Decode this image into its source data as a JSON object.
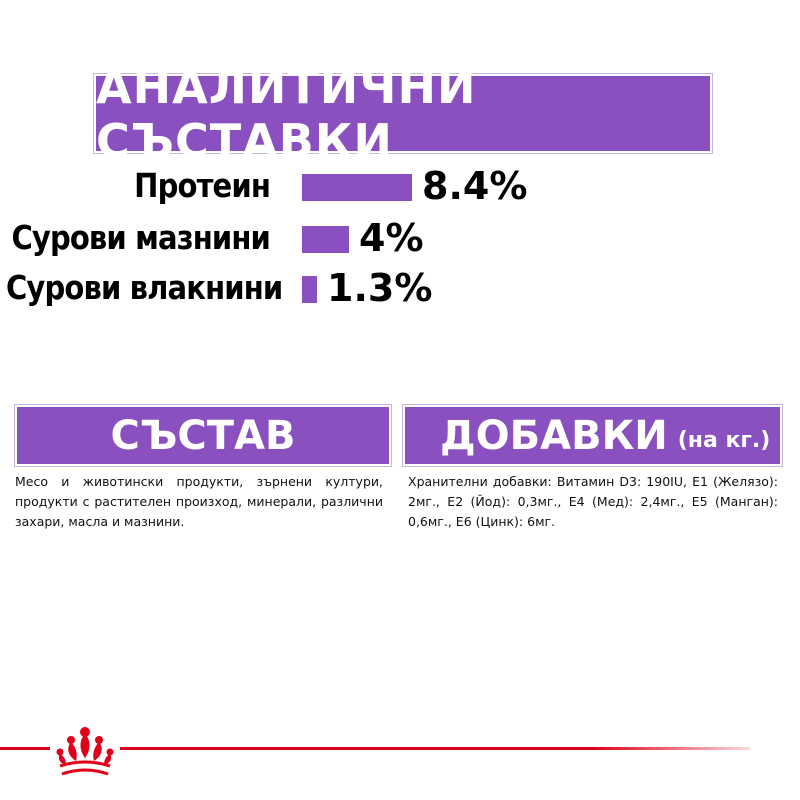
{
  "analytical": {
    "title": "АНАЛИТИЧНИ СЪСТАВКИ",
    "rows": [
      {
        "label": "Протеин",
        "value": "8.4%",
        "bar_fraction": 1.0
      },
      {
        "label": "Сурови мазнини",
        "value": "4%",
        "bar_fraction": 0.43
      },
      {
        "label": "Сурови влакнини",
        "value": "1.3%",
        "bar_fraction": 0.14
      }
    ]
  },
  "composition": {
    "title": "СЪСТАВ",
    "text": "Месо и животински продукти, зърнени култури, продукти с растителен произход, минерали, различни захари, масла и мазнини."
  },
  "additives": {
    "title": "ДОБАВКИ",
    "unit": "(на кг.)",
    "text": "Хранителни добавки: Витамин D3: 190IU, E1 (Желязо): 2мг., E2 (Йод): 0,3мг., E4 (Мед): 2,4мг., E5 (Манган): 0,6мг., E6 (Цинк): 6мг."
  },
  "colors": {
    "accent": "#8a50c0",
    "brand_red": "#e1001a"
  },
  "footer": {
    "logo_icon": "royal-crown-icon"
  }
}
